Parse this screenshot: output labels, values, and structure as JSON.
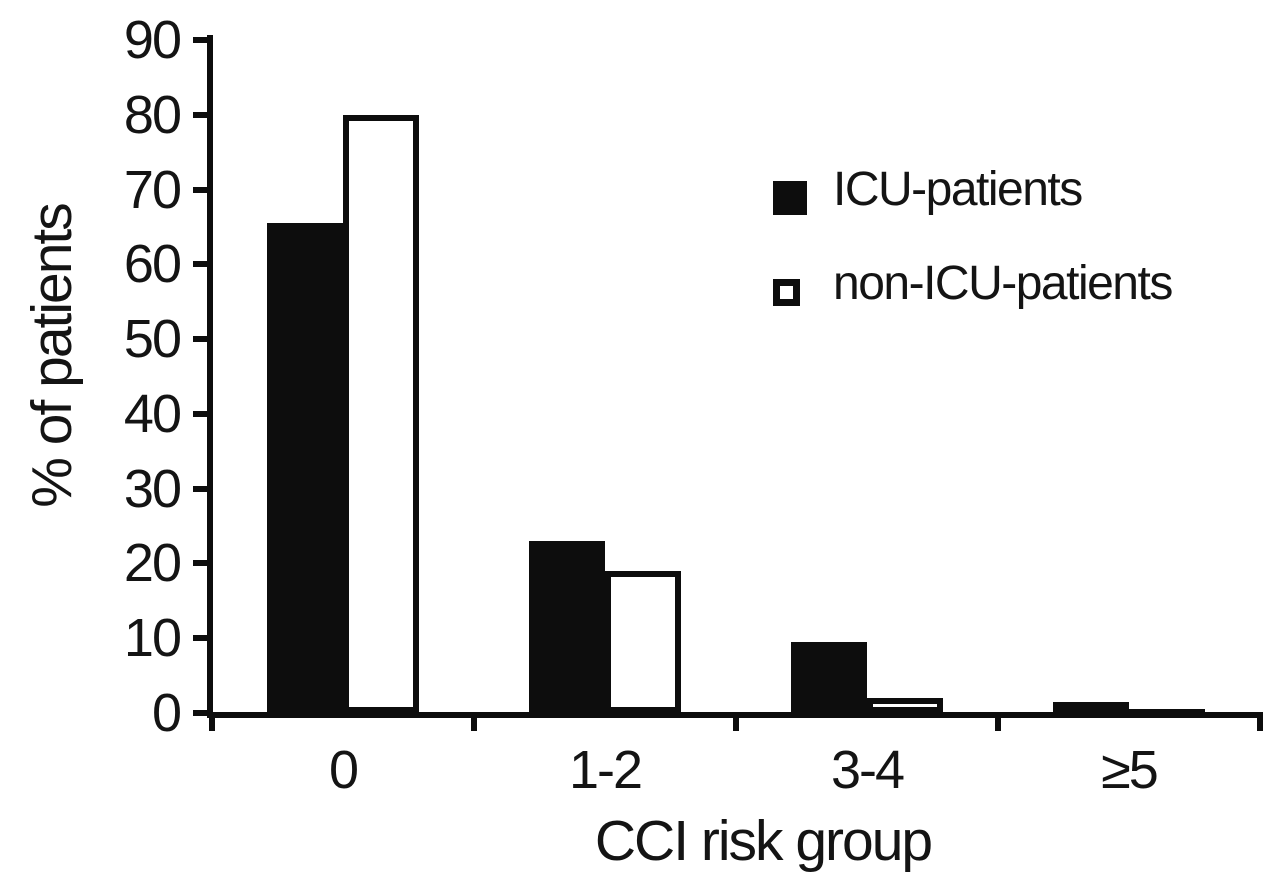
{
  "chart_data": {
    "type": "bar",
    "title": "",
    "categories": [
      "0",
      "1-2",
      "3-4",
      "≥5"
    ],
    "series": [
      {
        "name": "ICU-patients",
        "values": [
          65.5,
          23,
          9.5,
          1.5
        ],
        "fill": "#0d0d0d",
        "outlined": false
      },
      {
        "name": "non-ICU-patients",
        "values": [
          80,
          19,
          2,
          0.5
        ],
        "fill": "#ffffff",
        "outlined": true
      }
    ],
    "xlabel": "CCI risk group",
    "ylabel": "% of patients",
    "ylim": [
      0,
      90
    ],
    "yticks": [
      0,
      10,
      20,
      30,
      40,
      50,
      60,
      70,
      80,
      90
    ],
    "grid": false,
    "legend_position": "upper right",
    "axis_color": "#0d0d0d",
    "text_color": "#141414",
    "background_color": "#ffffff"
  }
}
